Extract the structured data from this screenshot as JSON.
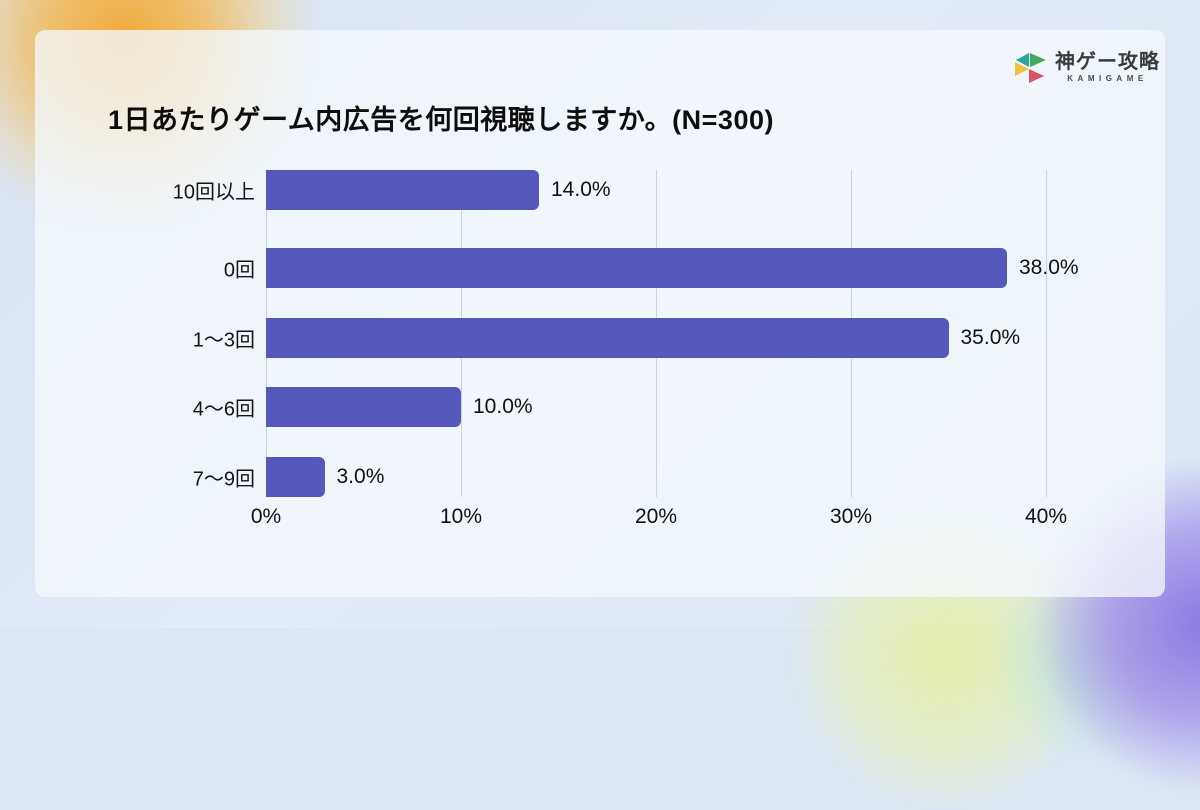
{
  "brand": {
    "name": "神ゲー攻略",
    "subtitle": "KAMIGAME",
    "logo_icon": "kamigame-triangles-icon",
    "logo_colors": {
      "teal": "#2aa79b",
      "green": "#45a85c",
      "blue": "#3f7fc1",
      "yellow": "#f0c23c",
      "red": "#d45663"
    }
  },
  "chart_data": {
    "type": "bar",
    "orientation": "horizontal",
    "title": "1日あたりゲーム内広告を何回視聴しますか。(N=300)",
    "categories": [
      "0回",
      "1〜3回",
      "4〜6回",
      "7〜9回",
      "10回以上"
    ],
    "values": [
      38.0,
      35.0,
      10.0,
      3.0,
      14.0
    ],
    "value_labels": [
      "38.0%",
      "35.0%",
      "10.0%",
      "3.0%",
      "14.0%"
    ],
    "xlabel": "",
    "ylabel": "",
    "xlim": [
      0,
      40
    ],
    "x_tick_values": [
      0,
      10,
      20,
      30,
      40
    ],
    "x_ticks": [
      "0%",
      "10%",
      "20%",
      "30%",
      "40%"
    ],
    "grid": true,
    "legend": "none",
    "bar_color": "#5458ba",
    "gridline_color": "#cbd2dc"
  },
  "colors": {
    "background_base": "#dce7f5",
    "card_background": "#f3f8fc",
    "blob_orange": "#f3a630",
    "blob_purple": "#826ee1",
    "blob_green": "#e4eea0",
    "text": "#0d0d0d"
  }
}
